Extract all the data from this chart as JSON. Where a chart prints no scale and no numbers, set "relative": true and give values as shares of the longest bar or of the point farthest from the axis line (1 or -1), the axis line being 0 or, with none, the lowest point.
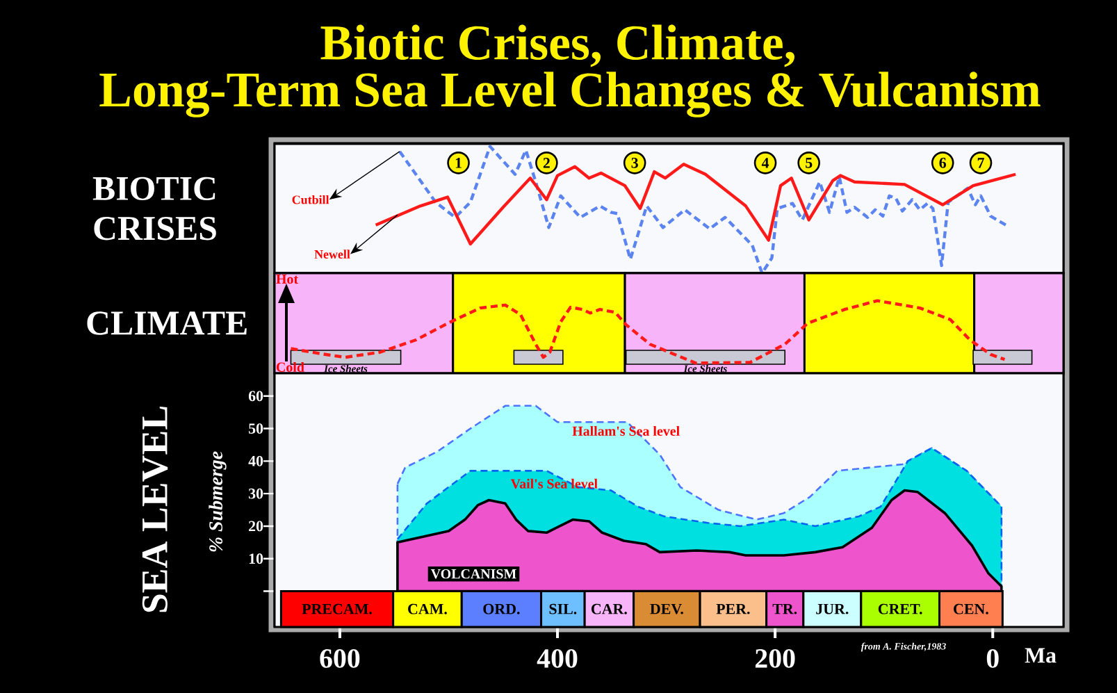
{
  "chart_data": [
    {
      "type": "line",
      "title": "Biotic Crises, Climate,",
      "subtitle": "Long-Term Sea Level Changes & Vulcanism",
      "ylabel": "BIOTIC CRISES",
      "relative": true,
      "xlim": [
        660,
        -65
      ],
      "series": [
        {
          "name": "Cutbill",
          "color": "#5b84f0",
          "line_style": "dashed",
          "x": [
            545,
            512,
            494,
            480,
            462,
            439,
            429,
            420,
            408,
            397,
            379,
            361,
            351,
            345,
            333,
            318,
            303,
            283,
            260,
            246,
            221,
            212,
            203,
            198,
            184,
            175,
            159,
            150,
            141,
            134,
            127,
            115,
            108,
            101,
            95,
            89,
            83,
            74,
            67,
            60,
            55,
            47,
            41,
            23,
            16,
            11,
            2,
            -14
          ],
          "values": [
            0.96,
            0.56,
            0.44,
            0.56,
            1.0,
            0.78,
            0.97,
            0.72,
            0.36,
            0.61,
            0.44,
            0.53,
            0.48,
            0.47,
            0.11,
            0.53,
            0.36,
            0.5,
            0.35,
            0.44,
            0.22,
            0,
            0.12,
            0.51,
            0.55,
            0.42,
            0.72,
            0.48,
            0.76,
            0.48,
            0.52,
            0.44,
            0.5,
            0.45,
            0.61,
            0.59,
            0.49,
            0.58,
            0.5,
            0.55,
            0.51,
            0.06,
            0.56,
            0.67,
            0.54,
            0.61,
            0.45,
            0.37
          ]
        },
        {
          "name": "Newell",
          "color": "#ff1a1a",
          "line_style": "solid",
          "x": [
            567,
            526,
            501,
            480,
            450,
            425,
            410,
            400,
            384,
            371,
            360,
            338,
            324,
            311,
            301,
            284,
            264,
            227,
            206,
            195,
            185,
            169,
            147,
            140,
            127,
            81,
            46,
            18,
            -21
          ],
          "values": [
            0.38,
            0.53,
            0.6,
            0.23,
            0.52,
            0.75,
            0.58,
            0.77,
            0.84,
            0.75,
            0.79,
            0.69,
            0.51,
            0.8,
            0.75,
            0.86,
            0.78,
            0.53,
            0.26,
            0.69,
            0.75,
            0.42,
            0.73,
            0.77,
            0.72,
            0.7,
            0.54,
            0.69,
            0.78
          ]
        }
      ],
      "annotations": [
        {
          "text": "1",
          "x": 491,
          "y": 0.87
        },
        {
          "text": "2",
          "x": 410,
          "y": 0.87
        },
        {
          "text": "3",
          "x": 329,
          "y": 0.87
        },
        {
          "text": "4",
          "x": 209,
          "y": 0.87
        },
        {
          "text": "5",
          "x": 169,
          "y": 0.87
        },
        {
          "text": "6",
          "x": 46,
          "y": 0.87
        },
        {
          "text": "7",
          "x": 11,
          "y": 0.87
        }
      ]
    },
    {
      "type": "line",
      "ylabel": "CLIMATE",
      "relative": true,
      "xlim": [
        660,
        -65
      ],
      "series": [
        {
          "color": "#ff1a1a",
          "line_style": "dashed",
          "x": [
            645,
            618,
            595,
            563,
            530,
            498,
            471,
            448,
            434,
            420,
            413,
            407,
            397,
            388,
            377,
            370,
            361,
            347,
            337,
            315,
            273,
            223,
            191,
            170,
            136,
            106,
            67,
            39,
            21,
            2,
            -11
          ],
          "values": [
            0.34,
            0.27,
            0.22,
            0.29,
            0.46,
            0.71,
            0.9,
            0.94,
            0.81,
            0.4,
            0.22,
            0.29,
            0.71,
            0.91,
            0.88,
            0.83,
            0.88,
            0.84,
            0.67,
            0.4,
            0.14,
            0.15,
            0.4,
            0.69,
            0.88,
            1.0,
            0.9,
            0.74,
            0.46,
            0.26,
            0.19
          ]
        }
      ],
      "bands": [
        {
          "axis": "x",
          "from": 660,
          "to": 496,
          "color": "#f8b4f8"
        },
        {
          "axis": "x",
          "from": 496,
          "to": 338,
          "color": "#ffff00"
        },
        {
          "axis": "x",
          "from": 338,
          "to": 173,
          "color": "#f8b4f8"
        },
        {
          "axis": "x",
          "from": 173,
          "to": 17,
          "color": "#ffff00"
        },
        {
          "axis": "x",
          "from": 17,
          "to": -65,
          "color": "#f8b4f8"
        },
        {
          "axis": "x",
          "from": 645,
          "to": 544,
          "label": "Ice Sheets",
          "color": "#c9c9d6"
        },
        {
          "axis": "x",
          "from": 440,
          "to": 395,
          "color": "#c9c9d6"
        },
        {
          "axis": "x",
          "from": 337,
          "to": 191,
          "label": "Ice Sheets",
          "color": "#c9c9d6"
        },
        {
          "axis": "x",
          "from": 18,
          "to": -36,
          "color": "#c9c9d6"
        }
      ],
      "annotations": [
        "Hot",
        "Cold"
      ]
    },
    {
      "type": "area",
      "title": "SEA LEVEL",
      "ylabel": "% Submerge",
      "xlabel": "Ma",
      "xlim": [
        660,
        -65
      ],
      "ylim": [
        -11,
        67
      ],
      "xticks": [
        600,
        400,
        200,
        0
      ],
      "yticks": [
        {
          "value": 0,
          "label": null
        },
        10,
        20,
        30,
        40,
        50,
        60
      ],
      "series": [
        {
          "name": "Hallam's Sea level",
          "color": "#aaffff",
          "line_style": "dashed",
          "x": [
            547,
            540,
            510,
            480,
            448,
            420,
            400,
            371,
            336,
            306,
            287,
            252,
            217,
            192,
            168,
            143,
            83,
            78,
            56,
            24,
            -8
          ],
          "values": [
            33,
            38,
            43,
            50,
            57,
            57,
            52,
            52,
            52,
            42,
            32,
            25,
            22,
            24,
            29,
            37,
            39,
            40,
            44,
            37,
            26
          ]
        },
        {
          "name": "Vail's Sea level",
          "color": "#00e0e0",
          "line_style": "dashed",
          "x": [
            547,
            520,
            480,
            440,
            410,
            381,
            351,
            326,
            302,
            262,
            232,
            192,
            163,
            123,
            103,
            78,
            56,
            24,
            -8
          ],
          "values": [
            16,
            27,
            37,
            37,
            37,
            32,
            31,
            26,
            23,
            21,
            20,
            22,
            20,
            23,
            26,
            40,
            44,
            37,
            26
          ]
        },
        {
          "name": "VOLCANISM",
          "color": "#ee55cc",
          "line_style": "solid",
          "x": [
            547,
            500,
            485,
            473,
            463,
            448,
            438,
            427,
            410,
            386,
            371,
            359,
            339,
            319,
            306,
            272,
            242,
            227,
            192,
            163,
            138,
            111,
            93,
            81,
            69,
            44,
            19,
            4,
            -8
          ],
          "values": [
            15,
            18.5,
            22,
            26.5,
            28,
            27,
            22,
            18.5,
            18,
            22,
            21.5,
            18,
            15.5,
            14.5,
            12,
            12.5,
            12,
            11,
            11,
            12,
            13.5,
            19.5,
            28,
            31,
            30.5,
            24,
            14,
            5.5,
            1.5
          ]
        }
      ],
      "bands": [
        {
          "axis": "x",
          "from": 654,
          "to": 551,
          "label": "PRECAM.",
          "color": "#ff0000"
        },
        {
          "axis": "x",
          "from": 551,
          "to": 488,
          "label": "CAM.",
          "color": "#ffff00"
        },
        {
          "axis": "x",
          "from": 488,
          "to": 415,
          "label": "ORD.",
          "color": "#5b7fff"
        },
        {
          "axis": "x",
          "from": 415,
          "to": 375,
          "label": "SIL.",
          "color": "#6ebfff"
        },
        {
          "axis": "x",
          "from": 375,
          "to": 330,
          "label": "CAR.",
          "color": "#f8b4f8"
        },
        {
          "axis": "x",
          "from": 330,
          "to": 269,
          "label": "DEV.",
          "color": "#d98c33"
        },
        {
          "axis": "x",
          "from": 269,
          "to": 208,
          "label": "PER.",
          "color": "#fbbf8c"
        },
        {
          "axis": "x",
          "from": 208,
          "to": 174,
          "label": "TR.",
          "color": "#ee55cc"
        },
        {
          "axis": "x",
          "from": 174,
          "to": 121,
          "label": "JUR.",
          "color": "#ccffff"
        },
        {
          "axis": "x",
          "from": 121,
          "to": 49,
          "label": "CRET.",
          "color": "#aaff00"
        },
        {
          "axis": "x",
          "from": 49,
          "to": -9,
          "label": "CEN.",
          "color": "#ff7f50"
        }
      ],
      "annotations": [
        "from A. Fischer,1983"
      ]
    }
  ]
}
